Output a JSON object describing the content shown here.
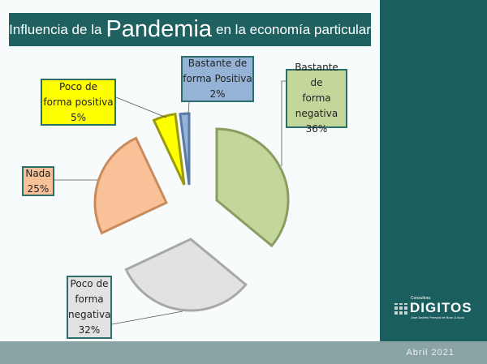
{
  "title": {
    "prefix": "Influencia de la",
    "highlight": "Pandemia",
    "suffix": "en la economía particular"
  },
  "brand": {
    "small": "Consultora",
    "name": "DIGITOS",
    "sub": "José Andrés Pereyra de Brun & Asoc"
  },
  "footer": {
    "date": "Abril 2021"
  },
  "chart_data": {
    "type": "pie",
    "exploded": true,
    "start": "12 o'clock, clockwise",
    "slices": [
      {
        "label": "Bastante de forma negativa",
        "value": 36,
        "pct": "36%",
        "color": "#c4d79b"
      },
      {
        "label": "Poco de forma negativa",
        "value": 32,
        "pct": "32%",
        "color": "#e2e2e2"
      },
      {
        "label": "Nada",
        "value": 25,
        "pct": "25%",
        "color": "#f9c197"
      },
      {
        "label": "Poco de forma positiva",
        "value": 5,
        "pct": "5%",
        "color": "#ffff00"
      },
      {
        "label": "Bastante de forma Positiva",
        "value": 2,
        "pct": "2%",
        "color": "#95b3d7"
      }
    ],
    "label_lines": [
      [
        "Bastante de",
        "forma",
        "negativa",
        "36%"
      ],
      [
        "Poco de",
        "forma",
        "negativa",
        "32%"
      ],
      [
        "Nada",
        "25%"
      ],
      [
        "Poco de",
        "forma positiva",
        "5%"
      ],
      [
        "Bastante de",
        "forma Positiva",
        "2%"
      ]
    ]
  }
}
